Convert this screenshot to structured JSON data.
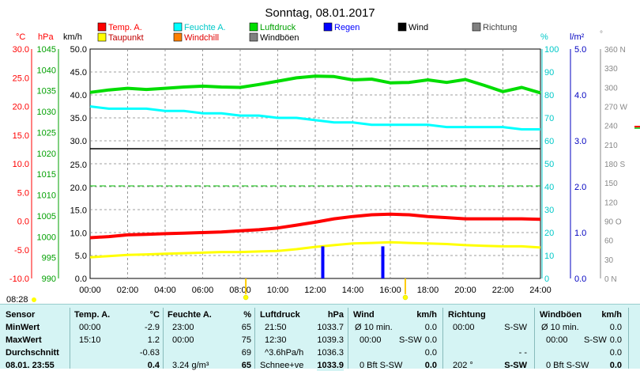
{
  "chart_data": {
    "type": "line",
    "title": "Sonntag, 08.01.2017",
    "legend": [
      {
        "label": "Temp. A.",
        "color": "#ff0000"
      },
      {
        "label": "Feuchte A.",
        "color": "#00ffff"
      },
      {
        "label": "Luftdruck",
        "color": "#00dd00"
      },
      {
        "label": "Regen",
        "color": "#0000ff"
      },
      {
        "label": "Wind",
        "color": "#000000"
      },
      {
        "label": "Richtung",
        "color": "#808080"
      },
      {
        "label": "Taupunkt",
        "color": "#ffff00"
      },
      {
        "label": "Windchill",
        "color": "#ff8000"
      },
      {
        "label": "Windböen",
        "color": "#808080"
      }
    ],
    "axis_units": {
      "temp": "°C",
      "pressure": "hPa",
      "wind": "km/h",
      "humidity": "%",
      "rain": "l/m²",
      "direction": "°"
    },
    "x_ticks": [
      "00:00",
      "02:00",
      "04:00",
      "06:00",
      "08:00",
      "10:00",
      "12:00",
      "14:00",
      "16:00",
      "18:00",
      "20:00",
      "22:00",
      "24:00"
    ],
    "temp_ticks": [
      "30.0",
      "25.0",
      "20.0",
      "15.0",
      "10.0",
      "5.0",
      "0.0",
      "-5.0",
      "-10.0"
    ],
    "pressure_ticks": [
      "1045",
      "1040",
      "1035",
      "1030",
      "1025",
      "1020",
      "1015",
      "1010",
      "1005",
      "1000",
      "995",
      "990"
    ],
    "wind_ticks_top": [
      "50.0",
      "45.0",
      "40.0",
      "35.0",
      "30.0"
    ],
    "wind_ticks_bottom": [
      "25.0",
      "20.0",
      "15.0",
      "10.0",
      "5.0",
      "0.0"
    ],
    "humidity_ticks": [
      "100",
      "90",
      "80",
      "70",
      "60",
      "50",
      "40",
      "30",
      "20",
      "10",
      "0"
    ],
    "rain_ticks": [
      "5.0",
      "4.0",
      "3.0",
      "2.0",
      "1.0",
      "0.0"
    ],
    "direction_ticks": [
      "360 N",
      "330",
      "300",
      "270 W",
      "240",
      "210",
      "180 S",
      "150",
      "120",
      "90 O",
      "60",
      "30",
      "0 N"
    ],
    "ylim_temp": [
      -10,
      30
    ],
    "ylim_pressure": [
      990,
      1045
    ],
    "ylim_humidity": [
      0,
      100
    ],
    "ylim_rain": [
      0,
      5
    ],
    "sunrise_label": "08:28",
    "series": [
      {
        "name": "Temp. A.",
        "color": "#ff0000",
        "x": [
          0,
          1,
          2,
          3,
          4,
          5,
          6,
          7,
          8,
          9,
          10,
          11,
          12,
          13,
          14,
          15,
          16,
          17,
          18,
          19,
          20,
          21,
          22,
          23,
          24
        ],
        "values": [
          -2.9,
          -2.7,
          -2.4,
          -2.3,
          -2.2,
          -2.1,
          -2.0,
          -1.9,
          -1.7,
          -1.5,
          -1.2,
          -0.7,
          -0.2,
          0.4,
          0.8,
          1.1,
          1.2,
          1.1,
          0.8,
          0.6,
          0.4,
          0.4,
          0.4,
          0.4,
          0.3
        ]
      },
      {
        "name": "Taupunkt",
        "color": "#ffff00",
        "x": [
          0,
          1,
          2,
          3,
          4,
          5,
          6,
          7,
          8,
          9,
          10,
          11,
          12,
          13,
          14,
          15,
          16,
          17,
          18,
          19,
          20,
          21,
          22,
          23,
          24
        ],
        "values": [
          -6.3,
          -6.1,
          -5.9,
          -5.8,
          -5.7,
          -5.6,
          -5.5,
          -5.4,
          -5.4,
          -5.3,
          -5.2,
          -4.9,
          -4.5,
          -4.2,
          -3.9,
          -3.8,
          -3.7,
          -3.8,
          -3.9,
          -4.0,
          -4.2,
          -4.3,
          -4.4,
          -4.4,
          -4.6
        ]
      },
      {
        "name": "Luftdruck",
        "color": "#00dd00",
        "x": [
          0,
          1,
          2,
          3,
          4,
          5,
          6,
          7,
          8,
          9,
          10,
          11,
          12,
          13,
          14,
          15,
          16,
          17,
          18,
          19,
          20,
          21,
          22,
          23,
          24
        ],
        "values": [
          1034.6,
          1035.2,
          1035.6,
          1035.3,
          1035.6,
          1035.9,
          1036.1,
          1035.9,
          1035.8,
          1036.5,
          1037.3,
          1038.1,
          1038.5,
          1038.4,
          1037.6,
          1037.8,
          1036.9,
          1037.0,
          1037.6,
          1037.0,
          1037.7,
          1036.3,
          1034.8,
          1035.8,
          1034.5
        ]
      },
      {
        "name": "Feuchte A.",
        "color": "#00ffff",
        "x": [
          0,
          1,
          2,
          3,
          4,
          5,
          6,
          7,
          8,
          9,
          10,
          11,
          12,
          13,
          14,
          15,
          16,
          17,
          18,
          19,
          20,
          21,
          22,
          23,
          24
        ],
        "values": [
          75,
          74,
          74,
          74,
          73,
          73,
          72,
          72,
          71,
          71,
          70,
          70,
          69,
          68,
          68,
          67,
          67,
          67,
          67,
          66,
          66,
          66,
          66,
          65,
          65
        ]
      }
    ],
    "rain_bars": [
      {
        "x": 12.4,
        "value": 0.7
      },
      {
        "x": 15.6,
        "value": 0.7
      }
    ],
    "markers": [
      {
        "x": 8.3
      },
      {
        "x": 16.8
      }
    ]
  },
  "stats": {
    "headers": {
      "sensor": "Sensor",
      "temp": "Temp. A.",
      "temp_unit": "°C",
      "hum": "Feuchte A.",
      "hum_unit": "%",
      "press": "Luftdruck",
      "press_unit": "hPa",
      "wind": "Wind",
      "wind_unit": "km/h",
      "dir": "Richtung",
      "gust": "Windböen",
      "gust_unit": "km/h"
    },
    "rows": [
      {
        "label": "MinWert",
        "temp_t": "00:00",
        "temp_v": "-2.9",
        "hum_t": "23:00",
        "hum_v": "65",
        "press_t": "21:50",
        "press_v": "1033.7",
        "wind_t": "Ø 10 min.",
        "wind_v": "0.0",
        "dir_t": "00:00",
        "dir_v": "S-SW",
        "gust_t": "Ø 10 min.",
        "gust_v": "0.0"
      },
      {
        "label": "MaxWert",
        "temp_t": "15:10",
        "temp_v": "1.2",
        "hum_t": "00:00",
        "hum_v": "75",
        "press_t": "12:30",
        "press_v": "1039.3",
        "wind_t": "00:00",
        "wind_d": "S-SW",
        "wind_v": "0.0",
        "dir_t": "",
        "dir_v": "",
        "gust_t": "00:00",
        "gust_d": "S-SW",
        "gust_v": "0.0"
      },
      {
        "label": "Durchschnitt",
        "temp_t": "",
        "temp_v": "-0.63",
        "hum_t": "",
        "hum_v": "69",
        "press_t": "^3.6hPa/h",
        "press_v": "1036.3",
        "wind_t": "",
        "wind_v": "0.0",
        "dir_t": "",
        "dir_v": "- -",
        "gust_t": "",
        "gust_v": "0.0"
      },
      {
        "label": "08.01. 23:55",
        "temp_t": "",
        "temp_v": "0.4",
        "hum_t": "3.24 g/m³",
        "hum_v": "65",
        "press_t": "Schnee+ve",
        "press_v": "1033.9",
        "wind_t": "0 Bft S-SW",
        "wind_v": "0.0",
        "dir_t": "202 °",
        "dir_v": "S-SW",
        "gust_t": "0 Bft S-SW",
        "gust_v": "0.0"
      }
    ]
  }
}
